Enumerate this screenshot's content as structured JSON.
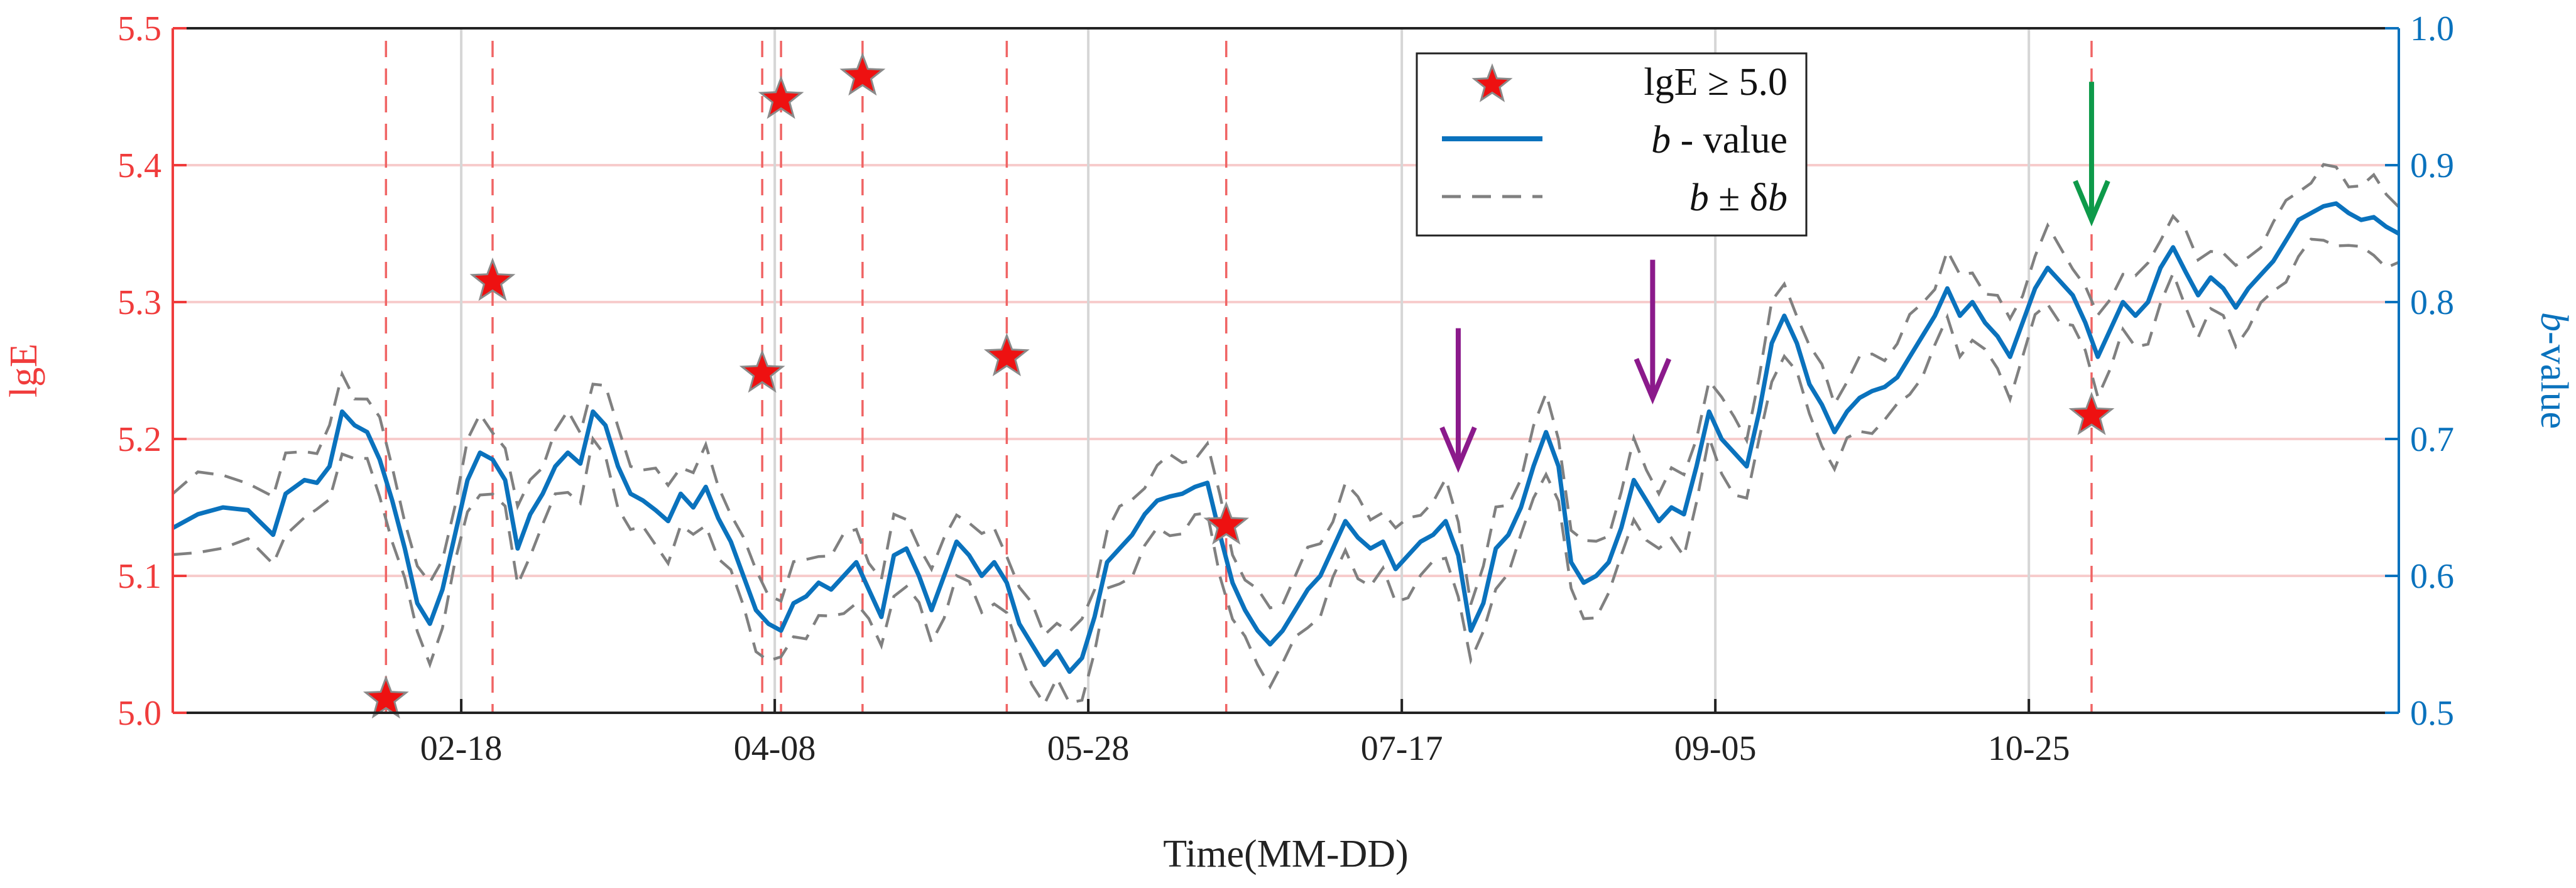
{
  "chart_data": {
    "type": "line",
    "xlabel": "Time(MM-DD)",
    "x_range_days": [
      0,
      355
    ],
    "x_ticks": [
      {
        "label": "02-18",
        "day": 46
      },
      {
        "label": "04-08",
        "day": 96
      },
      {
        "label": "05-28",
        "day": 146
      },
      {
        "label": "07-17",
        "day": 196
      },
      {
        "label": "09-05",
        "day": 246
      },
      {
        "label": "10-25",
        "day": 296
      }
    ],
    "y_left": {
      "label": "lgE",
      "range": [
        5.0,
        5.5
      ],
      "ticks": [
        "5.0",
        "5.1",
        "5.2",
        "5.3",
        "5.4",
        "5.5"
      ]
    },
    "y_right": {
      "label_prefix": "b",
      "label_suffix": "-value",
      "range": [
        0.5,
        1.0
      ],
      "ticks": [
        "0.5",
        "0.6",
        "0.7",
        "0.8",
        "0.9",
        "1.0"
      ]
    },
    "legend": {
      "placement": "top-center",
      "entries": [
        {
          "kind": "marker",
          "text": "lgE ≥ 5.0"
        },
        {
          "kind": "line",
          "italic": "b",
          "text": " - value"
        },
        {
          "kind": "dashed",
          "italic": "b",
          "middle": " ± δ",
          "italic2": "b"
        }
      ]
    },
    "events": [
      {
        "day": 34,
        "lgE": 5.01
      },
      {
        "day": 51,
        "lgE": 5.315
      },
      {
        "day": 94,
        "lgE": 5.248
      },
      {
        "day": 97,
        "lgE": 5.448
      },
      {
        "day": 110,
        "lgE": 5.465
      },
      {
        "day": 133,
        "lgE": 5.26
      },
      {
        "day": 168,
        "lgE": 5.137
      },
      {
        "day": 306,
        "lgE": 5.217
      }
    ],
    "b_value_series": [
      [
        0,
        0.635
      ],
      [
        4,
        0.645
      ],
      [
        8,
        0.65
      ],
      [
        12,
        0.648
      ],
      [
        16,
        0.63
      ],
      [
        18,
        0.66
      ],
      [
        21,
        0.67
      ],
      [
        23,
        0.668
      ],
      [
        25,
        0.68
      ],
      [
        27,
        0.72
      ],
      [
        29,
        0.71
      ],
      [
        31,
        0.705
      ],
      [
        33,
        0.685
      ],
      [
        35,
        0.655
      ],
      [
        37,
        0.62
      ],
      [
        39,
        0.58
      ],
      [
        41,
        0.565
      ],
      [
        43,
        0.59
      ],
      [
        45,
        0.63
      ],
      [
        47,
        0.67
      ],
      [
        49,
        0.69
      ],
      [
        51,
        0.685
      ],
      [
        53,
        0.67
      ],
      [
        55,
        0.62
      ],
      [
        57,
        0.645
      ],
      [
        59,
        0.66
      ],
      [
        61,
        0.68
      ],
      [
        63,
        0.69
      ],
      [
        65,
        0.682
      ],
      [
        67,
        0.72
      ],
      [
        69,
        0.71
      ],
      [
        71,
        0.68
      ],
      [
        73,
        0.66
      ],
      [
        75,
        0.655
      ],
      [
        77,
        0.648
      ],
      [
        79,
        0.64
      ],
      [
        81,
        0.66
      ],
      [
        83,
        0.65
      ],
      [
        85,
        0.665
      ],
      [
        87,
        0.642
      ],
      [
        89,
        0.625
      ],
      [
        91,
        0.6
      ],
      [
        93,
        0.575
      ],
      [
        95,
        0.565
      ],
      [
        97,
        0.56
      ],
      [
        99,
        0.58
      ],
      [
        101,
        0.585
      ],
      [
        103,
        0.595
      ],
      [
        105,
        0.59
      ],
      [
        107,
        0.6
      ],
      [
        109,
        0.61
      ],
      [
        111,
        0.59
      ],
      [
        113,
        0.57
      ],
      [
        115,
        0.615
      ],
      [
        117,
        0.62
      ],
      [
        119,
        0.6
      ],
      [
        121,
        0.575
      ],
      [
        123,
        0.6
      ],
      [
        125,
        0.625
      ],
      [
        127,
        0.615
      ],
      [
        129,
        0.6
      ],
      [
        131,
        0.61
      ],
      [
        133,
        0.595
      ],
      [
        135,
        0.565
      ],
      [
        137,
        0.55
      ],
      [
        139,
        0.535
      ],
      [
        141,
        0.545
      ],
      [
        143,
        0.53
      ],
      [
        145,
        0.54
      ],
      [
        147,
        0.57
      ],
      [
        149,
        0.61
      ],
      [
        151,
        0.62
      ],
      [
        153,
        0.63
      ],
      [
        155,
        0.645
      ],
      [
        157,
        0.655
      ],
      [
        159,
        0.658
      ],
      [
        161,
        0.66
      ],
      [
        163,
        0.665
      ],
      [
        165,
        0.668
      ],
      [
        167,
        0.63
      ],
      [
        169,
        0.595
      ],
      [
        171,
        0.575
      ],
      [
        173,
        0.56
      ],
      [
        175,
        0.55
      ],
      [
        177,
        0.56
      ],
      [
        179,
        0.575
      ],
      [
        181,
        0.59
      ],
      [
        183,
        0.6
      ],
      [
        185,
        0.62
      ],
      [
        187,
        0.64
      ],
      [
        189,
        0.628
      ],
      [
        191,
        0.62
      ],
      [
        193,
        0.625
      ],
      [
        195,
        0.605
      ],
      [
        197,
        0.615
      ],
      [
        199,
        0.625
      ],
      [
        201,
        0.63
      ],
      [
        203,
        0.64
      ],
      [
        205,
        0.615
      ],
      [
        207,
        0.56
      ],
      [
        209,
        0.58
      ],
      [
        211,
        0.62
      ],
      [
        213,
        0.63
      ],
      [
        215,
        0.65
      ],
      [
        217,
        0.68
      ],
      [
        219,
        0.705
      ],
      [
        221,
        0.68
      ],
      [
        223,
        0.61
      ],
      [
        225,
        0.595
      ],
      [
        227,
        0.6
      ],
      [
        229,
        0.61
      ],
      [
        231,
        0.635
      ],
      [
        233,
        0.67
      ],
      [
        235,
        0.655
      ],
      [
        237,
        0.64
      ],
      [
        239,
        0.65
      ],
      [
        241,
        0.645
      ],
      [
        243,
        0.68
      ],
      [
        245,
        0.72
      ],
      [
        247,
        0.7
      ],
      [
        249,
        0.69
      ],
      [
        251,
        0.68
      ],
      [
        253,
        0.72
      ],
      [
        255,
        0.77
      ],
      [
        257,
        0.79
      ],
      [
        259,
        0.77
      ],
      [
        261,
        0.74
      ],
      [
        263,
        0.725
      ],
      [
        265,
        0.705
      ],
      [
        267,
        0.72
      ],
      [
        269,
        0.73
      ],
      [
        271,
        0.735
      ],
      [
        273,
        0.738
      ],
      [
        275,
        0.745
      ],
      [
        277,
        0.76
      ],
      [
        279,
        0.775
      ],
      [
        281,
        0.79
      ],
      [
        283,
        0.81
      ],
      [
        285,
        0.79
      ],
      [
        287,
        0.8
      ],
      [
        289,
        0.785
      ],
      [
        291,
        0.775
      ],
      [
        293,
        0.76
      ],
      [
        295,
        0.785
      ],
      [
        297,
        0.81
      ],
      [
        299,
        0.825
      ],
      [
        301,
        0.815
      ],
      [
        303,
        0.805
      ],
      [
        305,
        0.785
      ],
      [
        307,
        0.76
      ],
      [
        309,
        0.78
      ],
      [
        311,
        0.8
      ],
      [
        313,
        0.79
      ],
      [
        315,
        0.8
      ],
      [
        317,
        0.825
      ],
      [
        319,
        0.84
      ],
      [
        321,
        0.822
      ],
      [
        323,
        0.805
      ],
      [
        325,
        0.818
      ],
      [
        327,
        0.81
      ],
      [
        329,
        0.796
      ],
      [
        331,
        0.81
      ],
      [
        333,
        0.82
      ],
      [
        335,
        0.83
      ],
      [
        337,
        0.845
      ],
      [
        339,
        0.86
      ],
      [
        341,
        0.865
      ],
      [
        343,
        0.87
      ],
      [
        345,
        0.872
      ],
      [
        347,
        0.865
      ],
      [
        349,
        0.86
      ],
      [
        351,
        0.862
      ],
      [
        353,
        0.855
      ],
      [
        355,
        0.85
      ]
    ],
    "b_uncertainty": 0.025,
    "arrows": [
      {
        "color": "#8b1a8b",
        "day": 205,
        "value": 0.68
      },
      {
        "color": "#8b1a8b",
        "day": 236,
        "value": 0.73
      },
      {
        "color": "#0e9a4a",
        "day": 306,
        "value": 0.86
      }
    ],
    "colors": {
      "left_axis": "#f03c3c",
      "right_axis": "#0a72bd",
      "b_line": "#0a72bd",
      "band": "#808080",
      "event_marker": "#ee1111",
      "event_line": "#f06464",
      "grid_h": "#f7cccc",
      "grid_v": "#d6d6d6"
    }
  }
}
